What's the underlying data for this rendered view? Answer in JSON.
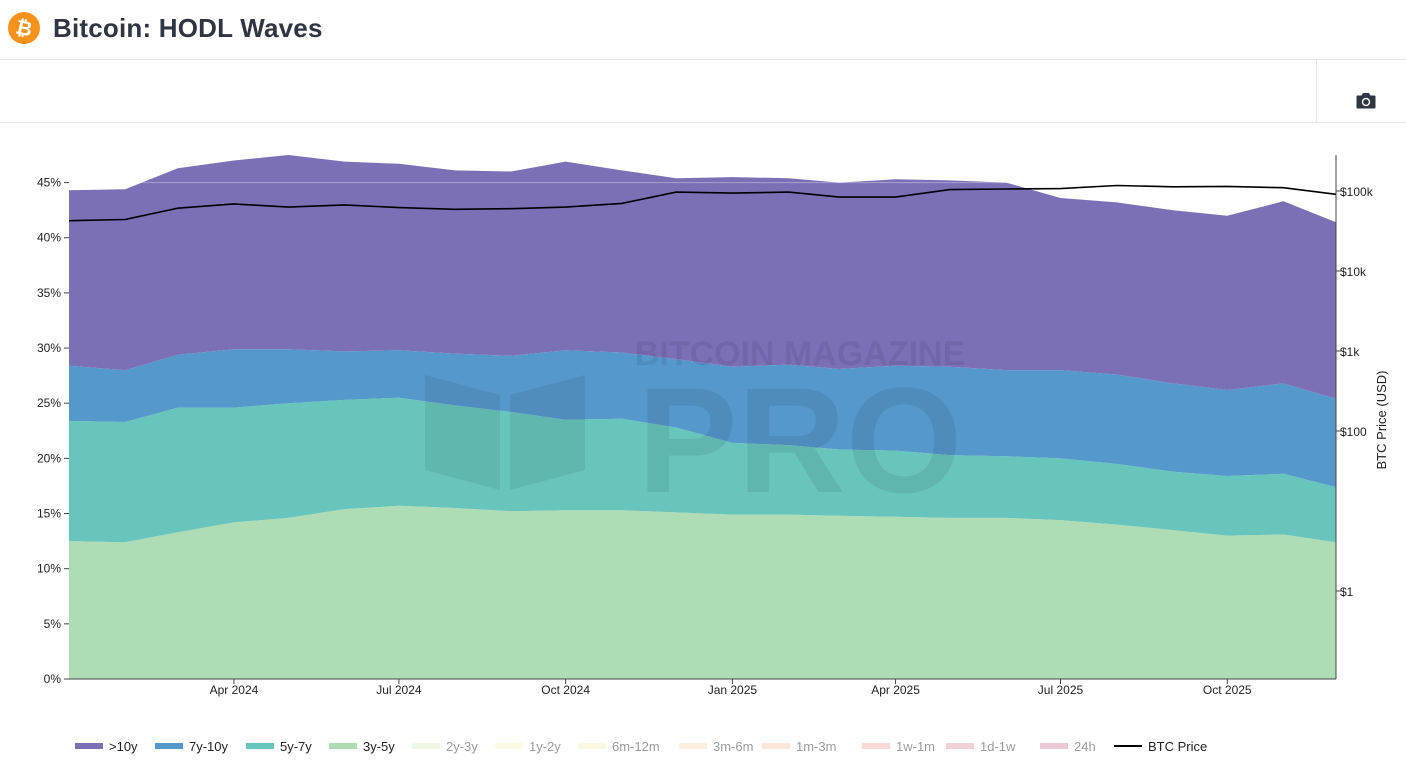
{
  "header": {
    "title": "Bitcoin: HODL Waves",
    "logo_icon": "bitcoin-logo-icon"
  },
  "toolbar": {
    "screenshot_icon": "camera-icon"
  },
  "watermark": {
    "line1": "BITCOIN MAGAZINE",
    "line2": "PRO"
  },
  "colors": {
    "gt10y": "#7b6fb6",
    "y7_10": "#5498cc",
    "y5_7": "#68c5bc",
    "y3_5": "#aedcb5",
    "price": "#000000",
    "brand_orange": "#f7931a"
  },
  "chart_data": {
    "type": "area",
    "stacked": true,
    "x_ticks": [
      "Apr 2024",
      "Jul 2024",
      "Oct 2024",
      "Jan 2025",
      "Apr 2025",
      "Jul 2025",
      "Oct 2025"
    ],
    "x_dates": [
      "2024-01-01",
      "2024-02-01",
      "2024-03-01",
      "2024-04-01",
      "2024-05-01",
      "2024-06-01",
      "2024-07-01",
      "2024-08-01",
      "2024-09-01",
      "2024-10-01",
      "2024-11-01",
      "2024-12-01",
      "2025-01-01",
      "2025-02-01",
      "2025-03-01",
      "2025-04-01",
      "2025-05-01",
      "2025-06-01",
      "2025-07-01",
      "2025-08-01",
      "2025-09-01",
      "2025-10-01",
      "2025-11-01",
      "2025-11-30"
    ],
    "y_left": {
      "ticks": [
        "0%",
        "5%",
        "10%",
        "15%",
        "20%",
        "25%",
        "30%",
        "35%",
        "40%",
        "45%"
      ],
      "range": [
        0,
        47.5
      ]
    },
    "y_right": {
      "label": "BTC Price (USD)",
      "scale": "log",
      "ticks": [
        "$1",
        "$100",
        "$1k",
        "$10k",
        "$100k"
      ]
    },
    "series": [
      {
        "name": "3y-5y",
        "values": [
          12.5,
          12.4,
          13.3,
          14.2,
          14.6,
          15.4,
          15.7,
          15.5,
          15.2,
          15.3,
          15.3,
          15.1,
          14.9,
          14.9,
          14.8,
          14.7,
          14.6,
          14.6,
          14.4,
          14.0,
          13.5,
          13.0,
          13.1,
          12.4
        ]
      },
      {
        "name": "5y-7y",
        "values": [
          10.9,
          10.9,
          11.3,
          10.4,
          10.4,
          9.9,
          9.8,
          9.3,
          9.0,
          8.2,
          8.3,
          7.7,
          6.5,
          6.3,
          6.0,
          6.0,
          5.7,
          5.6,
          5.6,
          5.5,
          5.3,
          5.4,
          5.5,
          5.0
        ]
      },
      {
        "name": "7y-10y",
        "values": [
          5.0,
          4.7,
          4.8,
          5.3,
          4.9,
          4.4,
          4.3,
          4.7,
          5.1,
          6.3,
          6.0,
          6.2,
          6.9,
          7.3,
          7.3,
          7.7,
          8.0,
          7.8,
          8.0,
          8.1,
          8.0,
          7.8,
          8.2,
          8.0
        ]
      },
      {
        "name": ">10y",
        "values": [
          15.9,
          16.4,
          16.9,
          17.1,
          17.6,
          17.2,
          16.9,
          16.6,
          16.7,
          17.1,
          16.5,
          16.4,
          17.2,
          16.9,
          16.9,
          16.9,
          16.9,
          17.0,
          15.6,
          15.6,
          15.7,
          15.8,
          16.5,
          16.0
        ]
      }
    ],
    "legend": [
      {
        "name": ">10y",
        "color": "#7b6fb6"
      },
      {
        "name": "7y-10y",
        "color": "#5498cc"
      },
      {
        "name": "5y-7y",
        "color": "#68c5bc"
      },
      {
        "name": "3y-5y",
        "color": "#aedcb5"
      },
      {
        "name": "2y-3y",
        "color": "#d8efc4",
        "hidden": true
      },
      {
        "name": "1y-2y",
        "color": "#f6f6c6",
        "hidden": true
      },
      {
        "name": "6m-12m",
        "color": "#faefc1",
        "hidden": true
      },
      {
        "name": "3m-6m",
        "color": "#fbdcb5",
        "hidden": true
      },
      {
        "name": "1m-3m",
        "color": "#f9c9a9",
        "hidden": true
      },
      {
        "name": "1w-1m",
        "color": "#f3aba5",
        "hidden": true
      },
      {
        "name": "1d-1w",
        "color": "#e59aa5",
        "hidden": true
      },
      {
        "name": "24h",
        "color": "#d38aa8",
        "hidden": true
      },
      {
        "name": "BTC Price",
        "color": "#000000",
        "line": true
      }
    ],
    "btc_price": {
      "name": "BTC Price",
      "values": [
        42500,
        44000,
        61000,
        69000,
        63000,
        67000,
        62000,
        59000,
        60000,
        63000,
        70000,
        97000,
        94000,
        97000,
        84000,
        84000,
        104000,
        106000,
        107000,
        117000,
        113000,
        114000,
        110000,
        91000
      ]
    }
  }
}
